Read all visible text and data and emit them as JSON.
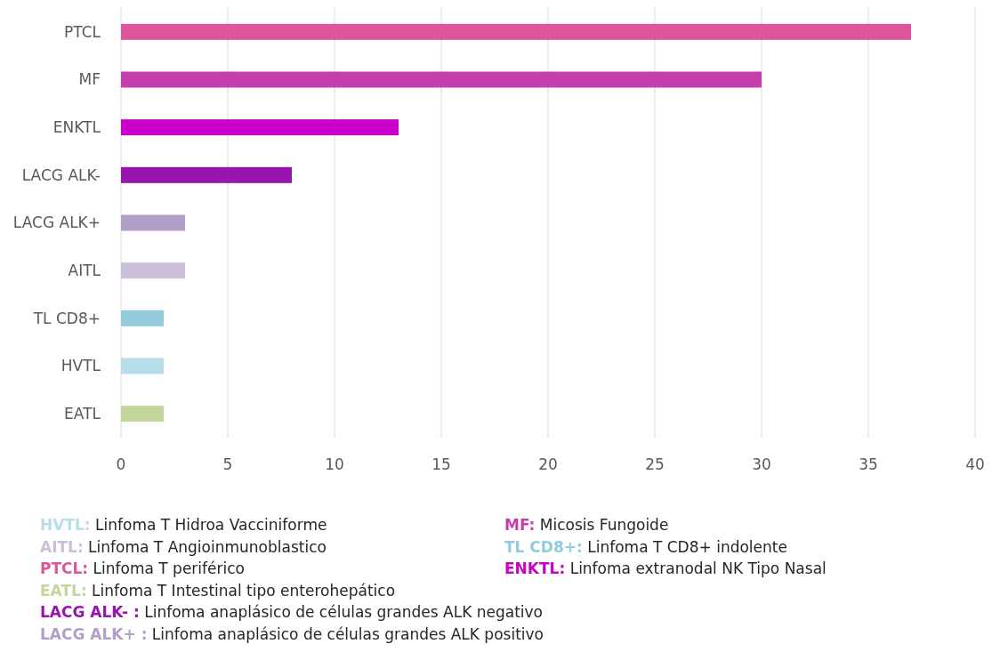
{
  "chart_data": {
    "type": "bar",
    "orientation": "horizontal",
    "categories": [
      "PTCL",
      "MF",
      "ENKTL",
      "LACG ALK-",
      "LACG ALK+",
      "AITL",
      "TL CD8+",
      "HVTL",
      "EATL"
    ],
    "values": [
      37,
      30,
      13,
      8,
      3,
      3,
      2,
      2,
      2
    ],
    "colors": [
      "#dc5699",
      "#c63fae",
      "#cb00c9",
      "#9716b0",
      "#b19fc8",
      "#cbbfdc",
      "#92ccdc",
      "#b6dde8",
      "#c3d69b"
    ],
    "xlim": [
      0,
      40
    ],
    "xticks": [
      0,
      5,
      10,
      15,
      20,
      25,
      30,
      35,
      40
    ],
    "grid": "x",
    "annotations": [
      "HVTL: Linfoma T Hidroa Vacciniforme",
      "MF: Micosis Fungoide",
      "AITL: Linfoma T Angioinmunoblastico",
      "TL CD8+: Linfoma T CD8+ indolente",
      "PTCL: Linfoma T periférico",
      "ENKTL: Linfoma extranodal NK Tipo Nasal",
      "EATL: Linfoma T Intestinal tipo enterohepático",
      "LACG ALK- : Linfoma anaplásico de células grandes ALK negativo",
      "LACG ALK+ : Linfoma anaplásico de células grandes ALK positivo"
    ]
  }
}
